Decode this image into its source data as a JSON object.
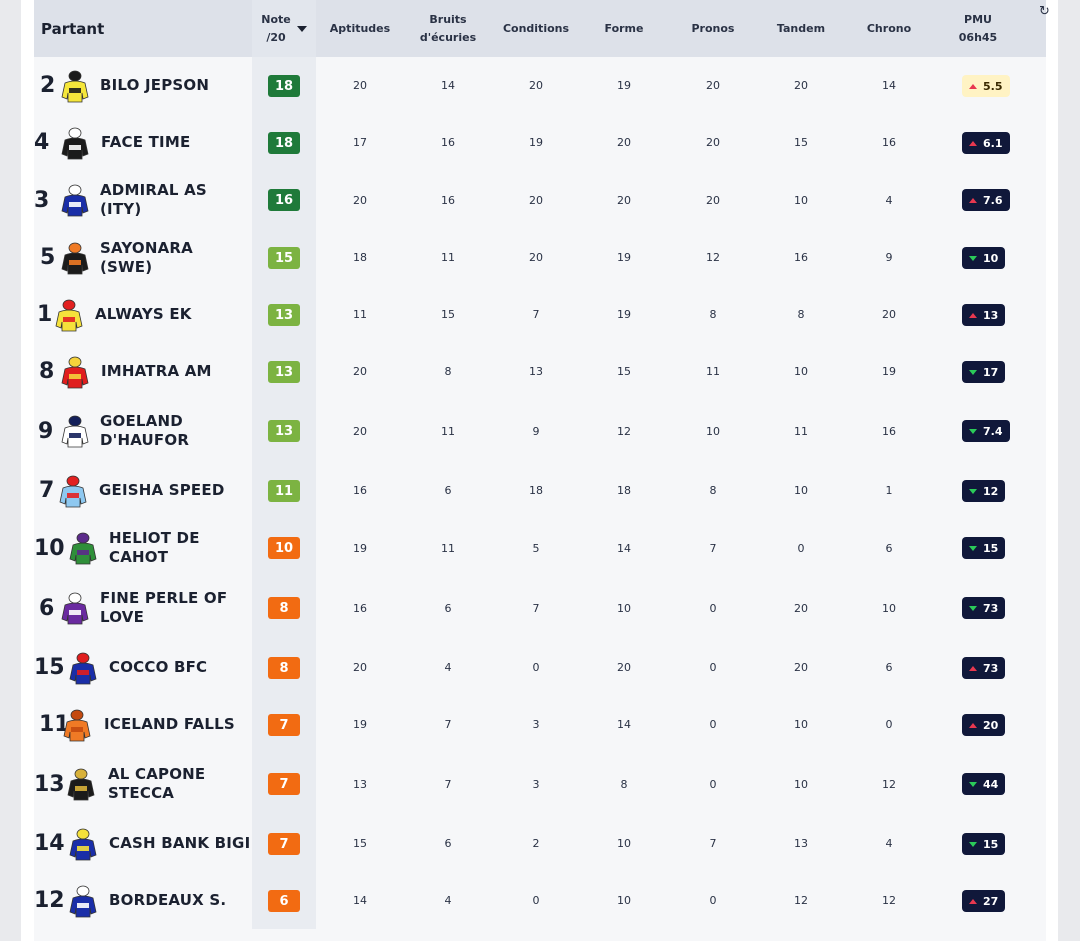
{
  "header": {
    "partant": "Partant",
    "note_line1": "Note",
    "note_line2": "/20",
    "aptitudes": "Aptitudes",
    "bruits_line1": "Bruits",
    "bruits_line2": "d'écuries",
    "conditions": "Conditions",
    "forme": "Forme",
    "pronos": "Pronos",
    "tandem": "Tandem",
    "chrono": "Chrono",
    "pmu_line1": "PMU",
    "pmu_line2": "06h45"
  },
  "colors": {
    "note_dark_green": "#1f7a3a",
    "note_light_green": "#7cb342",
    "note_orange": "#f26b12",
    "odds_bg": "#10183a",
    "odds_highlight": "#fff3c4",
    "arrow_up": "#e8384f",
    "arrow_down": "#2bcb59"
  },
  "rows": [
    {
      "num": "2",
      "name": "BILO JEPSON",
      "note": "18",
      "tier": "dark",
      "aptitudes": "20",
      "bruits": "14",
      "conditions": "20",
      "forme": "19",
      "pronos": "20",
      "tandem": "20",
      "chrono": "14",
      "pmu": "5.5",
      "trend": "up",
      "highlight": true,
      "silk": "yellow-black-check"
    },
    {
      "num": "4",
      "name": "FACE TIME",
      "note": "18",
      "tier": "dark",
      "aptitudes": "17",
      "bruits": "16",
      "conditions": "19",
      "forme": "20",
      "pronos": "20",
      "tandem": "15",
      "chrono": "16",
      "pmu": "6.1",
      "trend": "up",
      "highlight": false,
      "silk": "black-white-stripes"
    },
    {
      "num": "3",
      "name": "ADMIRAL AS (ITY)",
      "note": "16",
      "tier": "dark",
      "aptitudes": "20",
      "bruits": "16",
      "conditions": "20",
      "forme": "20",
      "pronos": "20",
      "tandem": "10",
      "chrono": "4",
      "pmu": "7.6",
      "trend": "up",
      "highlight": false,
      "silk": "blue"
    },
    {
      "num": "5",
      "name": "SAYONARA (SWE)",
      "note": "15",
      "tier": "light",
      "aptitudes": "18",
      "bruits": "11",
      "conditions": "20",
      "forme": "19",
      "pronos": "12",
      "tandem": "16",
      "chrono": "9",
      "pmu": "10",
      "trend": "down",
      "highlight": false,
      "silk": "black-orange-stripes"
    },
    {
      "num": "1",
      "name": "ALWAYS EK",
      "note": "13",
      "tier": "light",
      "aptitudes": "11",
      "bruits": "15",
      "conditions": "7",
      "forme": "19",
      "pronos": "8",
      "tandem": "8",
      "chrono": "20",
      "pmu": "13",
      "trend": "up",
      "highlight": false,
      "silk": "yellow-red"
    },
    {
      "num": "8",
      "name": "IMHATRA AM",
      "note": "13",
      "tier": "light",
      "aptitudes": "20",
      "bruits": "8",
      "conditions": "13",
      "forme": "15",
      "pronos": "11",
      "tandem": "10",
      "chrono": "19",
      "pmu": "17",
      "trend": "down",
      "highlight": false,
      "silk": "red"
    },
    {
      "num": "9",
      "name": "GOELAND D'HAUFOR",
      "note": "13",
      "tier": "light",
      "aptitudes": "20",
      "bruits": "11",
      "conditions": "9",
      "forme": "12",
      "pronos": "10",
      "tandem": "11",
      "chrono": "16",
      "pmu": "7.4",
      "trend": "down",
      "highlight": false,
      "silk": "white-navy"
    },
    {
      "num": "7",
      "name": "GEISHA SPEED",
      "note": "11",
      "tier": "light",
      "aptitudes": "16",
      "bruits": "6",
      "conditions": "18",
      "forme": "18",
      "pronos": "8",
      "tandem": "10",
      "chrono": "1",
      "pmu": "12",
      "trend": "down",
      "highlight": false,
      "silk": "lightblue-red"
    },
    {
      "num": "10",
      "name": "HELIOT DE CAHOT",
      "note": "10",
      "tier": "orange",
      "aptitudes": "19",
      "bruits": "11",
      "conditions": "5",
      "forme": "14",
      "pronos": "7",
      "tandem": "0",
      "chrono": "6",
      "pmu": "15",
      "trend": "down",
      "highlight": false,
      "silk": "green-purple"
    },
    {
      "num": "6",
      "name": "FINE PERLE OF LOVE",
      "note": "8",
      "tier": "orange",
      "aptitudes": "16",
      "bruits": "6",
      "conditions": "7",
      "forme": "10",
      "pronos": "0",
      "tandem": "20",
      "chrono": "10",
      "pmu": "73",
      "trend": "down",
      "highlight": false,
      "silk": "purple-white"
    },
    {
      "num": "15",
      "name": "COCCO BFC",
      "note": "8",
      "tier": "orange",
      "aptitudes": "20",
      "bruits": "4",
      "conditions": "0",
      "forme": "20",
      "pronos": "0",
      "tandem": "20",
      "chrono": "6",
      "pmu": "73",
      "trend": "up",
      "highlight": false,
      "silk": "blue-red"
    },
    {
      "num": "11",
      "name": "ICELAND FALLS",
      "note": "7",
      "tier": "orange",
      "aptitudes": "19",
      "bruits": "7",
      "conditions": "3",
      "forme": "14",
      "pronos": "0",
      "tandem": "10",
      "chrono": "0",
      "pmu": "20",
      "trend": "up",
      "highlight": false,
      "silk": "orange"
    },
    {
      "num": "13",
      "name": "AL CAPONE STECCA",
      "note": "7",
      "tier": "orange",
      "aptitudes": "13",
      "bruits": "7",
      "conditions": "3",
      "forme": "8",
      "pronos": "0",
      "tandem": "10",
      "chrono": "12",
      "pmu": "44",
      "trend": "down",
      "highlight": false,
      "silk": "black-gold"
    },
    {
      "num": "14",
      "name": "CASH BANK BIGI",
      "note": "7",
      "tier": "orange",
      "aptitudes": "15",
      "bruits": "6",
      "conditions": "2",
      "forme": "10",
      "pronos": "7",
      "tandem": "13",
      "chrono": "4",
      "pmu": "15",
      "trend": "down",
      "highlight": false,
      "silk": "blue-yellow"
    },
    {
      "num": "12",
      "name": "BORDEAUX S.",
      "note": "6",
      "tier": "orange",
      "aptitudes": "14",
      "bruits": "4",
      "conditions": "0",
      "forme": "10",
      "pronos": "0",
      "tandem": "12",
      "chrono": "12",
      "pmu": "27",
      "trend": "up",
      "highlight": false,
      "silk": "blue-white-stripes"
    }
  ]
}
